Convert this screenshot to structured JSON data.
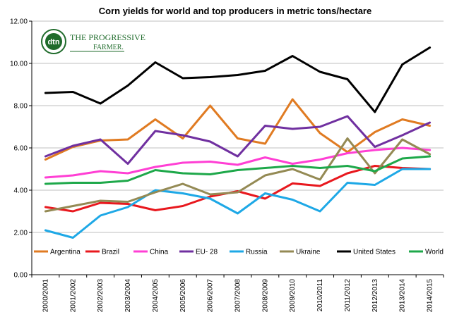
{
  "logo": {
    "circle_text": "dtn",
    "line1": "THE PROGRESSIVE",
    "line2": "FARMER."
  },
  "chart_data": {
    "type": "line",
    "title": "Corn yields for world and top producers in metric tons/hectare",
    "xlabel": "",
    "ylabel": "",
    "ylim": [
      0,
      12
    ],
    "yticks": [
      "0.00",
      "2.00",
      "4.00",
      "6.00",
      "8.00",
      "10.00",
      "12.00"
    ],
    "grid": true,
    "legend_position": "bottom-inside",
    "categories": [
      "2000/2001",
      "2001/2002",
      "2002/2003",
      "2003/2004",
      "2004/2005",
      "2005/2006",
      "2006/2007",
      "2007/2008",
      "2008/2009",
      "2009/2010",
      "2010/2011",
      "2011/2012",
      "2012/2013",
      "2013/2014",
      "2014/2015"
    ],
    "series": [
      {
        "name": "Argentina",
        "color": "#e07b22",
        "values": [
          5.45,
          6.05,
          6.35,
          6.4,
          7.35,
          6.45,
          8.0,
          6.45,
          6.2,
          8.3,
          6.7,
          5.8,
          6.75,
          7.35,
          7.05
        ]
      },
      {
        "name": "Brazil",
        "color": "#e8181e",
        "values": [
          3.2,
          3.0,
          3.4,
          3.35,
          3.05,
          3.25,
          3.7,
          3.95,
          3.6,
          4.32,
          4.2,
          4.8,
          5.15,
          5.05,
          5.0
        ]
      },
      {
        "name": "China",
        "color": "#ff3fd4",
        "values": [
          4.6,
          4.7,
          4.9,
          4.8,
          5.1,
          5.3,
          5.35,
          5.2,
          5.55,
          5.25,
          5.45,
          5.75,
          5.9,
          6.0,
          5.9
        ]
      },
      {
        "name": "EU- 28",
        "color": "#7030a0",
        "values": [
          5.6,
          6.1,
          6.4,
          5.25,
          6.8,
          6.6,
          6.3,
          5.6,
          7.05,
          6.9,
          7.0,
          7.5,
          6.05,
          6.6,
          7.2
        ]
      },
      {
        "name": "Russia",
        "color": "#1ea8e6",
        "values": [
          2.1,
          1.75,
          2.8,
          3.2,
          4.0,
          3.85,
          3.6,
          2.9,
          3.85,
          3.55,
          3.0,
          4.35,
          4.25,
          5.0,
          5.0
        ]
      },
      {
        "name": "Ukraine",
        "color": "#948a54",
        "values": [
          3.0,
          3.25,
          3.5,
          3.45,
          3.9,
          4.3,
          3.8,
          3.9,
          4.7,
          5.0,
          4.5,
          6.45,
          4.8,
          6.4,
          5.7
        ]
      },
      {
        "name": "United States",
        "color": "#000000",
        "values": [
          8.6,
          8.65,
          8.1,
          8.95,
          10.05,
          9.3,
          9.35,
          9.45,
          9.65,
          10.35,
          9.6,
          9.25,
          7.7,
          9.95,
          10.75
        ]
      },
      {
        "name": "World",
        "color": "#1ea84a",
        "values": [
          4.3,
          4.35,
          4.35,
          4.45,
          4.95,
          4.8,
          4.75,
          4.95,
          5.05,
          5.15,
          5.05,
          5.15,
          4.9,
          5.5,
          5.6
        ]
      }
    ]
  }
}
